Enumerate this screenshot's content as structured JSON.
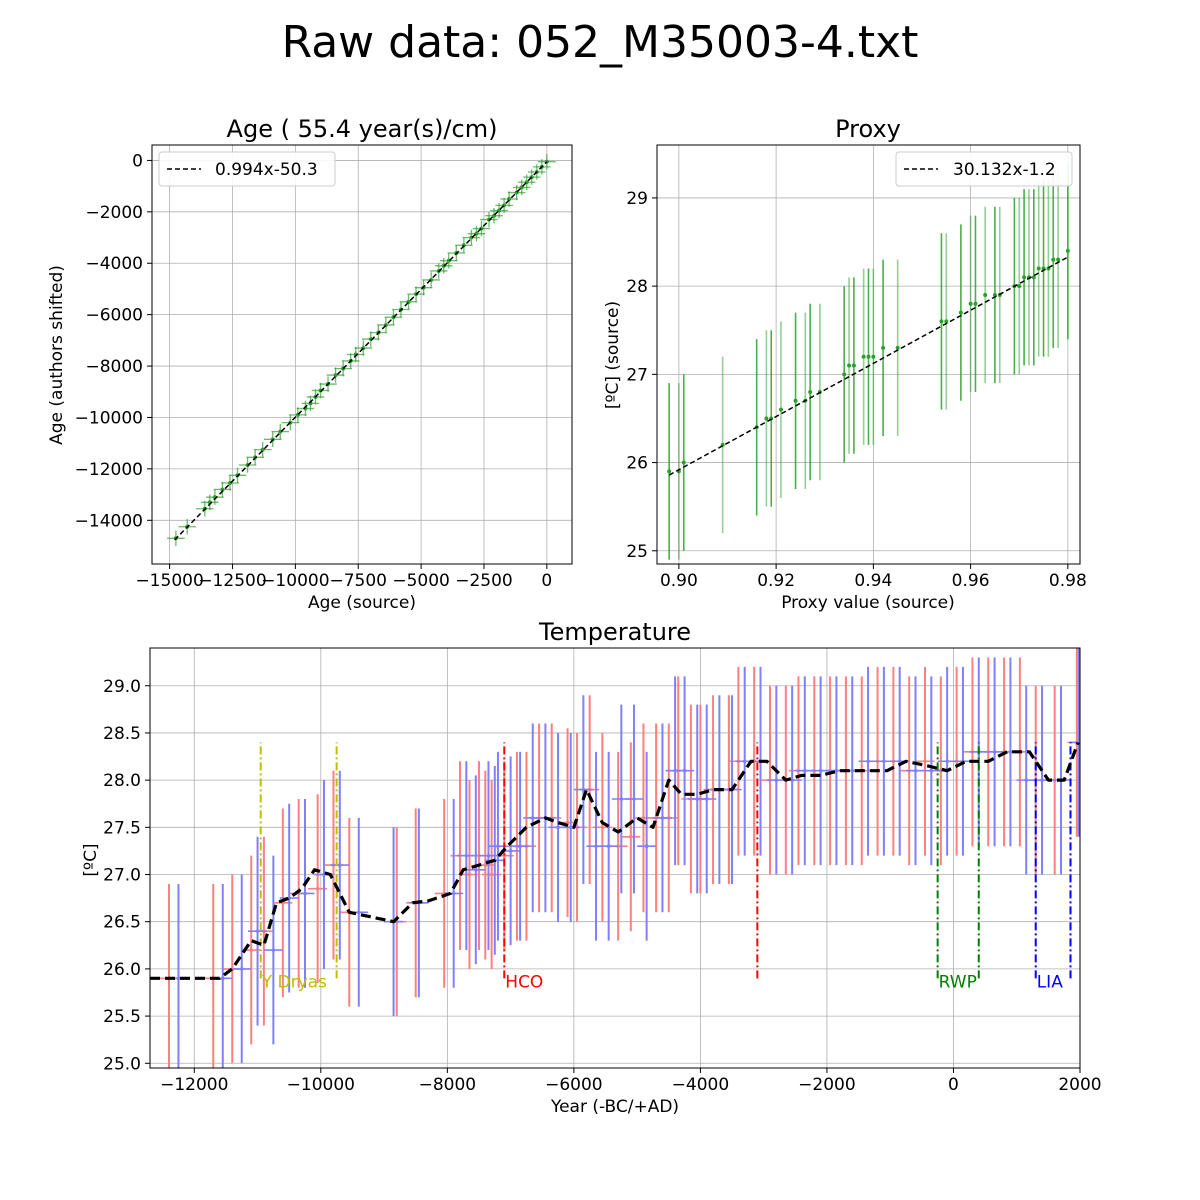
{
  "figure": {
    "title": "Raw data: 052_M35003-4.txt"
  },
  "chart_data": [
    {
      "id": "age",
      "type": "scatter",
      "title": "Age ( 55.4 year(s)/cm)",
      "xlabel": "Age (source)",
      "ylabel": "Age (authors shifted)",
      "xlim": [
        -15700,
        1000
      ],
      "ylim": [
        -15700,
        600
      ],
      "xticks": [
        -15000,
        -12500,
        -10000,
        -7500,
        -5000,
        -2500,
        0
      ],
      "xtick_labels": [
        "−15000",
        "−12500",
        "−10000",
        "−7500",
        "−5000",
        "−2500",
        "0"
      ],
      "yticks": [
        0,
        -2000,
        -4000,
        -6000,
        -8000,
        -10000,
        -12000,
        -14000
      ],
      "ytick_labels": [
        "0",
        "−2000",
        "−4000",
        "−6000",
        "−8000",
        "−10000",
        "−12000",
        "−14000"
      ],
      "grid": true,
      "legend": {
        "position": "upper-left",
        "entries": [
          "0.994x-50.3"
        ]
      },
      "fit": {
        "slope": 0.994,
        "intercept": -50.3,
        "x": [
          -14800,
          0
        ],
        "style": "dashed",
        "color": "#000000"
      },
      "points_x": [
        -14750,
        -14300,
        -13600,
        -13400,
        -13200,
        -12900,
        -12600,
        -12300,
        -11900,
        -11600,
        -11300,
        -10900,
        -10600,
        -10200,
        -9900,
        -9600,
        -9400,
        -9200,
        -9000,
        -8700,
        -8400,
        -8100,
        -7800,
        -7600,
        -7300,
        -7000,
        -6700,
        -6400,
        -6100,
        -5800,
        -5500,
        -5200,
        -4900,
        -4600,
        -4300,
        -4100,
        -3900,
        -3600,
        -3300,
        -3000,
        -2800,
        -2600,
        -2300,
        -2100,
        -1900,
        -1700,
        -1500,
        -1200,
        -1000,
        -800,
        -600,
        -400,
        -200,
        0
      ],
      "points_y": [
        -14700,
        -14250,
        -13550,
        -13300,
        -13100,
        -12800,
        -12550,
        -12250,
        -11850,
        -11550,
        -11250,
        -10850,
        -10550,
        -10200,
        -9900,
        -9650,
        -9450,
        -9200,
        -8950,
        -8700,
        -8350,
        -8100,
        -7800,
        -7550,
        -7300,
        -6950,
        -6700,
        -6400,
        -6100,
        -5800,
        -5500,
        -5200,
        -4950,
        -4650,
        -4300,
        -4100,
        -3900,
        -3600,
        -3300,
        -3000,
        -2850,
        -2650,
        -2300,
        -2150,
        -1950,
        -1750,
        -1500,
        -1250,
        -1050,
        -850,
        -650,
        -450,
        -250,
        -50
      ],
      "point_color": "#2ca02c"
    },
    {
      "id": "proxy",
      "type": "scatter",
      "title": "Proxy",
      "xlabel": "Proxy value (source)",
      "ylabel": "[ºC] (source)",
      "xlim": [
        0.8955,
        0.9825
      ],
      "ylim": [
        24.85,
        29.6
      ],
      "xticks": [
        0.9,
        0.92,
        0.94,
        0.96,
        0.98
      ],
      "xtick_labels": [
        "0.90",
        "0.92",
        "0.94",
        "0.96",
        "0.98"
      ],
      "yticks": [
        25,
        26,
        27,
        28,
        29
      ],
      "ytick_labels": [
        "25",
        "26",
        "27",
        "28",
        "29"
      ],
      "grid": true,
      "legend": {
        "position": "upper-right",
        "entries": [
          "30.132x-1.2"
        ]
      },
      "fit": {
        "slope": 30.132,
        "intercept": -1.2,
        "x": [
          0.898,
          0.98
        ],
        "style": "dashed",
        "color": "#000000"
      },
      "points_x": [
        0.898,
        0.9,
        0.901,
        0.909,
        0.916,
        0.918,
        0.919,
        0.921,
        0.924,
        0.926,
        0.927,
        0.929,
        0.934,
        0.935,
        0.936,
        0.938,
        0.939,
        0.94,
        0.942,
        0.945,
        0.954,
        0.955,
        0.958,
        0.96,
        0.961,
        0.963,
        0.965,
        0.966,
        0.969,
        0.97,
        0.971,
        0.972,
        0.973,
        0.974,
        0.975,
        0.976,
        0.977,
        0.978,
        0.98
      ],
      "points_y": [
        25.9,
        25.9,
        26.0,
        26.2,
        26.4,
        26.5,
        26.5,
        26.6,
        26.7,
        26.7,
        26.8,
        26.8,
        27.0,
        27.1,
        27.1,
        27.2,
        27.2,
        27.2,
        27.3,
        27.3,
        27.6,
        27.6,
        27.7,
        27.8,
        27.8,
        27.9,
        27.9,
        27.9,
        28.0,
        28.0,
        28.1,
        28.1,
        28.1,
        28.2,
        28.2,
        28.2,
        28.3,
        28.3,
        28.4
      ],
      "error": 1.0,
      "point_color": "#2ca02c"
    },
    {
      "id": "temperature",
      "type": "line",
      "title": "Temperature",
      "xlabel": "Year (-BC/+AD)",
      "ylabel": "[ºC]",
      "xlim": [
        -12700,
        2000
      ],
      "ylim": [
        24.95,
        29.4
      ],
      "xticks": [
        -12000,
        -10000,
        -8000,
        -6000,
        -4000,
        -2000,
        0,
        2000
      ],
      "xtick_labels": [
        "−12000",
        "−10000",
        "−8000",
        "−6000",
        "−4000",
        "−2000",
        "0",
        "2000"
      ],
      "yticks": [
        25.0,
        25.5,
        26.0,
        26.5,
        27.0,
        27.5,
        28.0,
        28.5,
        29.0
      ],
      "ytick_labels": [
        "25.0",
        "25.5",
        "26.0",
        "26.5",
        "27.0",
        "27.5",
        "28.0",
        "28.5",
        "29.0"
      ],
      "grid": true,
      "x": [
        -12700,
        -11600,
        -11400,
        -11100,
        -10900,
        -10700,
        -10500,
        -10300,
        -10100,
        -9850,
        -9550,
        -9200,
        -8850,
        -8550,
        -8300,
        -7950,
        -7750,
        -7500,
        -7250,
        -7050,
        -6750,
        -6450,
        -6250,
        -6000,
        -5800,
        -5550,
        -5300,
        -5000,
        -4750,
        -4500,
        -4300,
        -4050,
        -3800,
        -3500,
        -3200,
        -2950,
        -2650,
        -2400,
        -2100,
        -1800,
        -1400,
        -1050,
        -750,
        -400,
        -100,
        200,
        550,
        850,
        1200,
        1500,
        1750,
        1970
      ],
      "y": [
        25.9,
        25.9,
        26.0,
        26.3,
        26.25,
        26.7,
        26.75,
        26.85,
        27.05,
        27.0,
        26.6,
        26.55,
        26.5,
        26.7,
        26.72,
        26.8,
        27.05,
        27.1,
        27.15,
        27.3,
        27.5,
        27.6,
        27.55,
        27.5,
        27.9,
        27.55,
        27.45,
        27.6,
        27.5,
        28.0,
        27.85,
        27.85,
        27.9,
        27.9,
        28.2,
        28.2,
        28.0,
        28.05,
        28.05,
        28.1,
        28.1,
        28.1,
        28.2,
        28.15,
        28.1,
        28.2,
        28.2,
        28.3,
        28.3,
        28.0,
        28.0,
        28.4
      ],
      "line_color": "#000000",
      "error_bars": {
        "red_x": [
          -12400,
          -11700,
          -11400,
          -11100,
          -10900,
          -10600,
          -10350,
          -10050,
          -9800,
          -9550,
          -8800,
          -8500,
          -8050,
          -7800,
          -7650,
          -7500,
          -7400,
          -7300,
          -7100,
          -6900,
          -6750,
          -6550,
          -6350,
          -6100,
          -5950,
          -5750,
          -5550,
          -5300,
          -5100,
          -4900,
          -4700,
          -4500,
          -4350,
          -4150,
          -4000,
          -3800,
          -3550,
          -3400,
          -3150,
          -2900,
          -2650,
          -2450,
          -2200,
          -1950,
          -1700,
          -1450,
          -1200,
          -950,
          -700,
          -450,
          -200,
          50,
          300,
          550,
          800,
          1050,
          1300,
          1600,
          1950
        ],
        "red_y": [
          25.9,
          25.9,
          26.0,
          26.2,
          26.4,
          26.7,
          26.8,
          26.85,
          27.1,
          26.6,
          26.5,
          26.7,
          26.8,
          27.2,
          27.0,
          27.2,
          27.1,
          27.0,
          27.2,
          27.3,
          27.3,
          27.6,
          27.6,
          27.55,
          27.5,
          27.9,
          27.5,
          27.3,
          27.4,
          27.6,
          27.6,
          27.6,
          28.1,
          27.8,
          27.8,
          27.9,
          27.9,
          28.2,
          28.2,
          28.0,
          28.0,
          28.1,
          28.1,
          28.1,
          28.1,
          28.1,
          28.2,
          28.2,
          28.1,
          28.2,
          28.1,
          28.2,
          28.3,
          28.3,
          28.3,
          28.3,
          28.0,
          28.0,
          28.4
        ],
        "blue_x": [
          -12250,
          -11550,
          -11250,
          -11000,
          -10750,
          -10500,
          -10250,
          -9950,
          -9700,
          -9400,
          -8850,
          -8450,
          -7900,
          -7700,
          -7550,
          -7350,
          -7250,
          -7200,
          -7000,
          -6850,
          -6650,
          -6450,
          -6250,
          -6050,
          -5850,
          -5650,
          -5450,
          -5250,
          -5050,
          -4850,
          -4600,
          -4400,
          -4250,
          -4050,
          -3900,
          -3700,
          -3500,
          -3300,
          -3050,
          -2800,
          -2550,
          -2350,
          -2100,
          -1850,
          -1600,
          -1350,
          -1100,
          -850,
          -600,
          -350,
          -100,
          150,
          400,
          650,
          900,
          1150,
          1400,
          1700,
          1980
        ],
        "blue_y": [
          25.9,
          25.9,
          26.0,
          26.4,
          26.2,
          26.75,
          26.8,
          27.0,
          27.1,
          26.6,
          26.5,
          26.7,
          26.8,
          27.2,
          27.05,
          27.2,
          27.15,
          27.3,
          27.25,
          27.3,
          27.6,
          27.6,
          27.5,
          27.5,
          27.9,
          27.3,
          27.3,
          27.8,
          27.8,
          27.3,
          27.6,
          28.1,
          28.1,
          27.8,
          27.8,
          27.9,
          27.9,
          28.2,
          28.2,
          28.0,
          28.0,
          28.1,
          28.1,
          28.1,
          28.1,
          28.2,
          28.2,
          28.2,
          28.1,
          28.1,
          28.2,
          28.2,
          28.3,
          28.3,
          28.3,
          28.0,
          28.0,
          28.0,
          28.4
        ],
        "y_error": 1.0,
        "x_error": 150,
        "red_color": "#ff7f7f",
        "blue_color": "#7f7fff"
      },
      "events": [
        {
          "label": "Y Dryas",
          "start": -10950,
          "end": -9750,
          "color": "#bfbf00"
        },
        {
          "label": "HCO",
          "start": -7100,
          "end": -3100,
          "color": "#ff0000"
        },
        {
          "label": "RWP",
          "start": -250,
          "end": 400,
          "color": "#008000"
        },
        {
          "label": "LIA",
          "start": 1300,
          "end": 1850,
          "color": "#0000ff"
        }
      ],
      "event_band": [
        25.9,
        28.4
      ]
    }
  ]
}
